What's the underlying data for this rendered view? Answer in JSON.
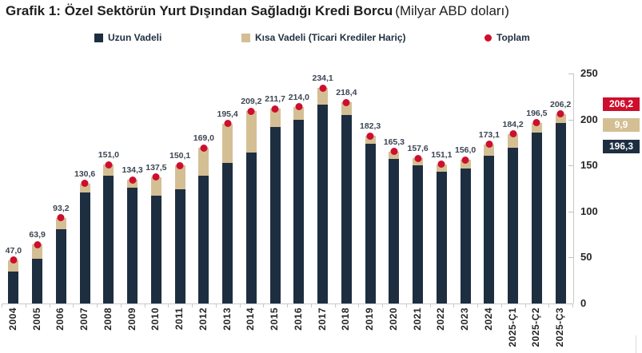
{
  "title": {
    "main": "Grafik 1: Özel Sektörün Yurt Dışından Sağladığı Kredi Borcu",
    "unit": "(Milyar ABD doları)"
  },
  "colors": {
    "long_term_navy": "#1e2e41",
    "short_term_tan": "#d4bf94",
    "total_red": "#ce0e2d",
    "data_label": "#3c4653",
    "axis_text": "#262626",
    "legend_text": "#1f3040",
    "axis_line": "#c9c9c9"
  },
  "legend": {
    "items": [
      {
        "label": "Uzun Vadeli",
        "marker": "square",
        "color": "#1e2e41"
      },
      {
        "label": "Kısa Vadeli (Ticari Krediler Hariç)",
        "marker": "square",
        "color": "#d4bf94"
      },
      {
        "label": "Toplam",
        "marker": "dot",
        "color": "#ce0e2d"
      }
    ]
  },
  "callouts": {
    "items": [
      {
        "name": "total",
        "label": "206,2",
        "bg": "#ce0e2d",
        "fg": "#ffffff"
      },
      {
        "name": "short-term",
        "label": "9,9",
        "bg": "#d4bf94",
        "fg": "#ffffff"
      },
      {
        "name": "long-term",
        "label": "196,3",
        "bg": "#1e2e41",
        "fg": "#ffffff"
      }
    ]
  },
  "chart_data": {
    "type": "bar",
    "stacked": true,
    "title": "Grafik 1: Özel Sektörün Yurt Dışından Sağladığı Kredi Borcu (Milyar ABD doları)",
    "xlabel": "",
    "ylabel": "",
    "ylim": [
      0,
      250
    ],
    "y_ticks": [
      0,
      50,
      100,
      150,
      200,
      250
    ],
    "y_axis_position": "right",
    "grid": false,
    "categories": [
      "2004",
      "2005",
      "2006",
      "2007",
      "2008",
      "2009",
      "2010",
      "2011",
      "2012",
      "2013",
      "2014",
      "2015",
      "2016",
      "2017",
      "2018",
      "2019",
      "2020",
      "2021",
      "2022",
      "2023",
      "2024",
      "2025-Ç1",
      "2025-Ç2",
      "2025-Ç3"
    ],
    "series": [
      {
        "name": "Uzun Vadeli",
        "color": "#1e2e41",
        "values": [
          35.0,
          49.0,
          81.0,
          121.0,
          139.0,
          126.0,
          117.0,
          124.0,
          138.5,
          153.0,
          164.5,
          191.5,
          200.0,
          216.5,
          205.0,
          174.0,
          157.0,
          150.5,
          143.5,
          146.5,
          160.5,
          169.0,
          185.5,
          196.3
        ]
      },
      {
        "name": "Kısa Vadeli (Ticari Krediler Hariç)",
        "color": "#d4bf94",
        "values": [
          12.0,
          14.9,
          12.2,
          9.6,
          12.0,
          8.3,
          20.5,
          26.1,
          30.5,
          42.4,
          44.7,
          20.2,
          14.0,
          17.6,
          13.4,
          8.3,
          8.3,
          7.1,
          7.6,
          9.5,
          12.6,
          15.2,
          11.0,
          9.9
        ]
      }
    ],
    "totals": [
      47.0,
      63.9,
      93.2,
      130.6,
      151.0,
      134.3,
      137.5,
      150.1,
      169.0,
      195.4,
      209.2,
      211.7,
      214.0,
      234.1,
      218.4,
      182.3,
      165.3,
      157.6,
      151.1,
      156.0,
      173.1,
      184.2,
      196.5,
      206.2
    ],
    "total_labels": [
      "47,0",
      "63,9",
      "93,2",
      "130,6",
      "151,0",
      "134,3",
      "137,5",
      "150,1",
      "169,0",
      "195,4",
      "209,2",
      "211,7",
      "214,0",
      "234,1",
      "218,4",
      "182,3",
      "165,3",
      "157,6",
      "151,1",
      "156,0",
      "173,1",
      "184,2",
      "196,5",
      "206,2"
    ],
    "total_marker": "red-dot",
    "legend_position": "top"
  }
}
